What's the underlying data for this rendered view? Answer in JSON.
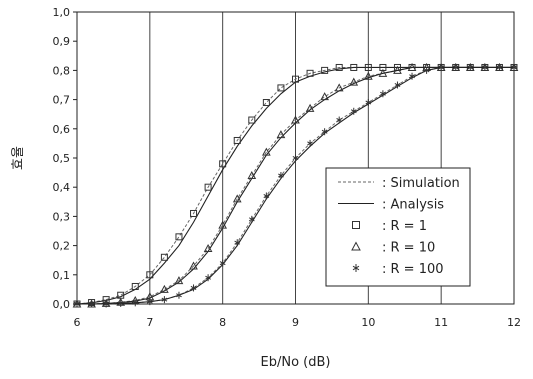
{
  "chart_data": {
    "type": "line",
    "title": "",
    "xlabel": "Eb/No (dB)",
    "ylabel": "효율",
    "xlim": [
      6,
      12
    ],
    "ylim": [
      0,
      1.0
    ],
    "xticks": [
      "6",
      "7",
      "8",
      "9",
      "10",
      "11",
      "12"
    ],
    "yticks": [
      "0,0",
      "0,1",
      "0,2",
      "0,3",
      "0,4",
      "0,5",
      "0,6",
      "0,7",
      "0,8",
      "0,9",
      "1,0"
    ],
    "grid": "vertical",
    "legend": {
      "position": "lower-right",
      "entries": [
        ": Simulation",
        ": Analysis",
        ": R = 1",
        ": R = 10",
        ": R = 100"
      ]
    },
    "series": [
      {
        "name": "R = 1",
        "marker": "square",
        "x": [
          6.0,
          6.2,
          6.4,
          6.6,
          6.8,
          7.0,
          7.2,
          7.4,
          7.6,
          7.8,
          8.0,
          8.2,
          8.4,
          8.6,
          8.8,
          9.0,
          9.2,
          9.4,
          9.6,
          9.8,
          10.0,
          10.2,
          10.4,
          10.6,
          10.8,
          11.0,
          11.2,
          11.4,
          11.6,
          11.8,
          12.0
        ],
        "simulation": [
          0.0,
          0.005,
          0.015,
          0.03,
          0.06,
          0.1,
          0.16,
          0.23,
          0.31,
          0.4,
          0.48,
          0.56,
          0.63,
          0.69,
          0.74,
          0.77,
          0.79,
          0.8,
          0.81,
          0.81,
          0.81,
          0.81,
          0.81,
          0.81,
          0.81,
          0.81,
          0.81,
          0.81,
          0.81,
          0.81,
          0.81
        ],
        "analysis": [
          0.0,
          0.004,
          0.012,
          0.025,
          0.05,
          0.085,
          0.14,
          0.2,
          0.28,
          0.37,
          0.46,
          0.54,
          0.61,
          0.67,
          0.72,
          0.76,
          0.78,
          0.795,
          0.805,
          0.81,
          0.81,
          0.81,
          0.81,
          0.81,
          0.81,
          0.81,
          0.81,
          0.81,
          0.81,
          0.81,
          0.81
        ]
      },
      {
        "name": "R = 10",
        "marker": "triangle",
        "x": [
          6.0,
          6.2,
          6.4,
          6.6,
          6.8,
          7.0,
          7.2,
          7.4,
          7.6,
          7.8,
          8.0,
          8.2,
          8.4,
          8.6,
          8.8,
          9.0,
          9.2,
          9.4,
          9.6,
          9.8,
          10.0,
          10.2,
          10.4,
          10.6,
          10.8,
          11.0,
          11.2,
          11.4,
          11.6,
          11.8,
          12.0
        ],
        "simulation": [
          0.0,
          0.0,
          0.002,
          0.006,
          0.012,
          0.025,
          0.05,
          0.08,
          0.13,
          0.19,
          0.27,
          0.36,
          0.44,
          0.52,
          0.58,
          0.63,
          0.67,
          0.71,
          0.74,
          0.76,
          0.78,
          0.79,
          0.8,
          0.81,
          0.81,
          0.81,
          0.81,
          0.81,
          0.81,
          0.81,
          0.81
        ],
        "analysis": [
          0.0,
          0.0,
          0.002,
          0.005,
          0.01,
          0.02,
          0.045,
          0.075,
          0.12,
          0.18,
          0.26,
          0.35,
          0.43,
          0.51,
          0.57,
          0.62,
          0.665,
          0.7,
          0.73,
          0.755,
          0.775,
          0.79,
          0.8,
          0.81,
          0.81,
          0.81,
          0.81,
          0.81,
          0.81,
          0.81,
          0.81
        ]
      },
      {
        "name": "R = 100",
        "marker": "asterisk",
        "x": [
          6.0,
          6.2,
          6.4,
          6.6,
          6.8,
          7.0,
          7.2,
          7.4,
          7.6,
          7.8,
          8.0,
          8.2,
          8.4,
          8.6,
          8.8,
          9.0,
          9.2,
          9.4,
          9.6,
          9.8,
          10.0,
          10.2,
          10.4,
          10.6,
          10.8,
          11.0,
          11.2,
          11.4,
          11.6,
          11.8,
          12.0
        ],
        "simulation": [
          0.0,
          0.0,
          0.0,
          0.002,
          0.004,
          0.008,
          0.015,
          0.03,
          0.055,
          0.09,
          0.14,
          0.21,
          0.29,
          0.37,
          0.44,
          0.5,
          0.55,
          0.59,
          0.63,
          0.66,
          0.69,
          0.72,
          0.75,
          0.78,
          0.8,
          0.81,
          0.81,
          0.81,
          0.81,
          0.81,
          0.81
        ],
        "analysis": [
          0.0,
          0.0,
          0.0,
          0.002,
          0.004,
          0.008,
          0.015,
          0.03,
          0.05,
          0.085,
          0.135,
          0.2,
          0.28,
          0.36,
          0.43,
          0.49,
          0.54,
          0.585,
          0.62,
          0.655,
          0.685,
          0.715,
          0.745,
          0.775,
          0.8,
          0.81,
          0.81,
          0.81,
          0.81,
          0.81,
          0.81
        ]
      }
    ]
  }
}
